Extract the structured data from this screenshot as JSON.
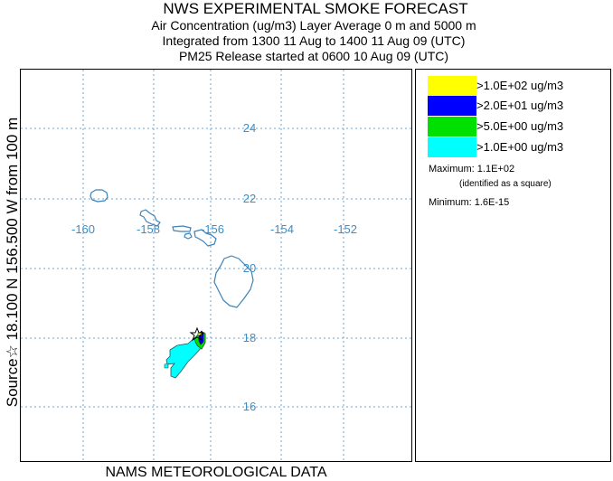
{
  "header": {
    "title": "NWS EXPERIMENTAL SMOKE FORECAST",
    "line2": "Air Concentration (ug/m3) Layer Average    0 m and  5000 m",
    "line3": "Integrated from 1300 11 Aug to 1400 11 Aug 09 (UTC)",
    "line4": "PM25 Release started at 0600 10 Aug 09 (UTC)"
  },
  "side_label": "Source☆ 18.100 N 156.500 W       from  100 m",
  "footer": "NAMS METEOROLOGICAL DATA",
  "map": {
    "lon_labels": [
      "-160",
      "-158",
      "-156",
      "-154",
      "-152"
    ],
    "lat_labels": [
      "24",
      "22",
      "20",
      "18",
      "16"
    ],
    "colors": {
      "coast": "#3b82b8",
      "grid": "#6fa4d0",
      "tick_text": "#3b8ec6"
    }
  },
  "legend": {
    "levels": [
      {
        "label": ">1.0E+02 ug/m3",
        "color": "#ffff00"
      },
      {
        "label": ">2.0E+01 ug/m3",
        "color": "#0000ff"
      },
      {
        "label": ">5.0E+00 ug/m3",
        "color": "#00e000"
      },
      {
        "label": ">1.0E+00 ug/m3",
        "color": "#00ffff"
      }
    ],
    "maximum": "Maximum: 1.1E+02",
    "maximum_note": "(identified as a square)",
    "minimum": "Minimum: 1.6E-15"
  }
}
